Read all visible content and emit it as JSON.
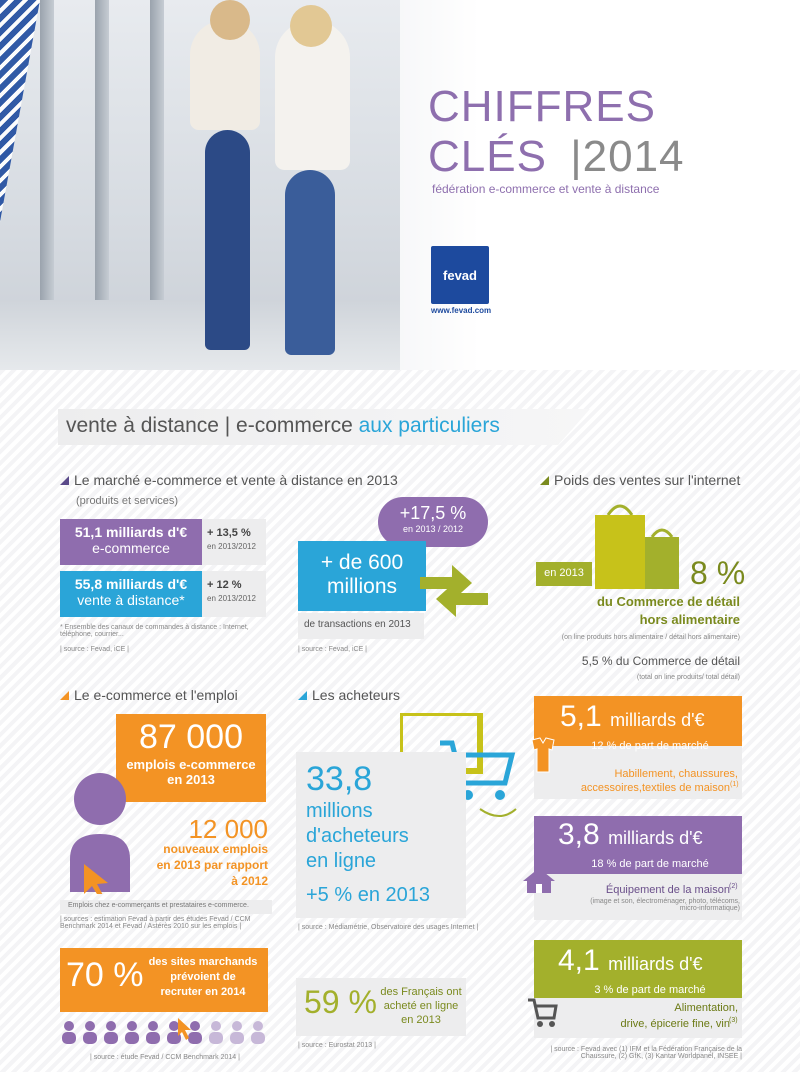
{
  "header": {
    "title_line1": "CHIFFRES",
    "title_line2": "CLÉS",
    "title_sep": "|",
    "title_year": "2014",
    "subtitle": "fédération e-commerce et vente à distance",
    "logo_text": "fevad",
    "logo_url": "www.fevad.com"
  },
  "banner": {
    "part1": "vente à distance | e-commerce",
    "part2": "aux particuliers"
  },
  "marche": {
    "title": "Le marché e-commerce et vente à distance en 2013",
    "sub": "(produits et services)",
    "row1_main": "51,1 milliards d'€",
    "row1_sub": "e-commerce",
    "row1_pct": "+ 13,5 %",
    "row1_year": "en 2013/2012",
    "row2_main": "55,8 milliards d'€",
    "row2_sub": "vente à distance*",
    "row2_pct": "+ 12 %",
    "row2_year": "en 2013/2012",
    "note": "* Ensemble des canaux de commandes à distance : Internet, téléphone, courrier...",
    "source": "| source : Fevad, iCE |"
  },
  "transactions": {
    "bubble_pct": "+17,5 %",
    "bubble_year": "en 2013 / 2012",
    "main_line1": "+ de 600",
    "main_line2": "millions",
    "caption": "de transactions en 2013",
    "source": "| source : Fevad, iCE |"
  },
  "poids": {
    "title": "Poids des ventes sur l'internet",
    "year_tag": "en 2013",
    "pct": "8 %",
    "line1": "du Commerce de détail",
    "line2": "hors alimentaire",
    "note1": "(on line produits hors alimentaire / détail hors alimentaire)",
    "line3": "5,5 % du Commerce de détail",
    "note2": "(total on line produits/ total détail)"
  },
  "emploi": {
    "title": "Le e-commerce et l'emploi",
    "big": "87 000",
    "big_sub1": "emplois e-commerce",
    "big_sub2": "en 2013",
    "num2": "12 000",
    "num2_l1": "nouveaux emplois",
    "num2_l2": "en 2013 par rapport",
    "num2_l3": "à 2012",
    "note": "Emplois chez e-commerçants et prestataires e-commerce.",
    "source": "| sources : estimation Fevad à partir des études Fevad / CCM Benchmark 2014 et Fevad / Astérès 2010 sur les emplois |"
  },
  "acheteurs": {
    "title": "Les acheteurs",
    "num": "33,8",
    "l1": "millions",
    "l2": "d'acheteurs",
    "l3": "en ligne",
    "growth": "+5 % en 2013",
    "source": "| source : Médiamétrie, Observatoire des usages Internet |"
  },
  "recrut": {
    "pct": "70 %",
    "l1": "des sites marchands",
    "l2": "prévoient de",
    "l3": "recruter en 2014",
    "source": "| source : étude Fevad / CCM Benchmark 2014 |"
  },
  "francais": {
    "pct": "59 %",
    "l1": "des Français ont",
    "l2": "acheté en ligne",
    "l3": "en 2013",
    "source": "| source : Eurostat 2013 |"
  },
  "secteurs": [
    {
      "value": "5,1",
      "unit": "milliards d'€",
      "share": "12 % de part de marché",
      "label1": "Habillement, chaussures,",
      "label2": "accessoires,textiles de maison",
      "sup": "(1)",
      "detail": ""
    },
    {
      "value": "3,8",
      "unit": "milliards d'€",
      "share": "18 % de part de marché",
      "label1": "Équipement de la maison",
      "label2": "",
      "sup": "(2)",
      "detail": "(image et son, électroménager, photo, télécoms, micro-informatique)"
    },
    {
      "value": "4,1",
      "unit": "milliards d'€",
      "share": "3 % de part de marché",
      "label1": "Alimentation,",
      "label2": "drive, épicerie fine, vin",
      "sup": "(3)",
      "detail": ""
    }
  ],
  "secteurs_source": "| source : Fevad avec (1) IFM et la Fédération Française de la Chaussure, (2) GfK, (3) Kantar Worldpanel, INSEE |",
  "colors": {
    "purple": "#8f6dae",
    "cyan": "#2aa5d8",
    "orange": "#f39324",
    "green": "#a3b02c",
    "navy": "#1d4a9e"
  }
}
